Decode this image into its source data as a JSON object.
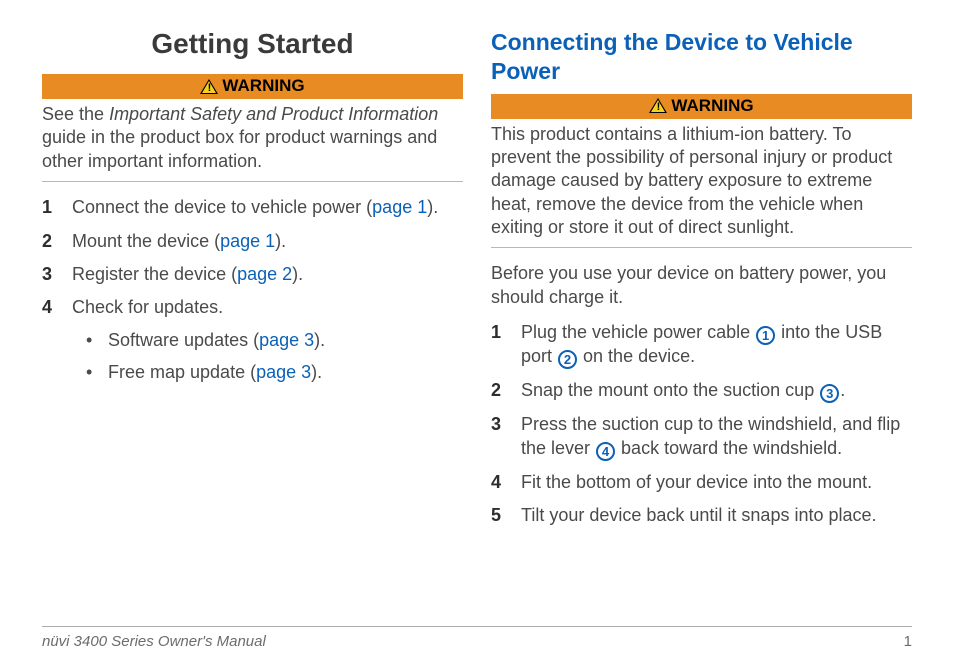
{
  "left": {
    "title": "Getting Started",
    "warning_label": "WARNING",
    "warning_before": "See the ",
    "warning_italic": "Important Safety and Product Information",
    "warning_after": " guide in the product box for product warnings and other important information.",
    "step1_a": "Connect the device to vehicle power (",
    "step1_link": "page 1",
    "step1_b": ").",
    "step2_a": "Mount the device (",
    "step2_link": "page 1",
    "step2_b": ").",
    "step3_a": "Register the device (",
    "step3_link": "page 2",
    "step3_b": ").",
    "step4": "Check for updates.",
    "sub1_a": "Software updates (",
    "sub1_link": "page 3",
    "sub1_b": ").",
    "sub2_a": "Free map update (",
    "sub2_link": "page 3",
    "sub2_b": ")."
  },
  "right": {
    "title": "Connecting the Device to Vehicle Power",
    "warning_label": "WARNING",
    "warning_text": "This product contains a lithium-ion battery. To prevent the possibility of personal injury or product damage caused by battery exposure to extreme heat, remove the device from the vehicle when exiting or store it out of direct sunlight.",
    "intro": "Before you use your device on battery power, you should charge it.",
    "s1_a": "Plug the vehicle power cable ",
    "s1_b": " into the USB port ",
    "s1_c": " on the device.",
    "s2_a": "Snap the mount onto the suction cup ",
    "s2_b": ".",
    "s3_a": "Press the suction cup to the windshield, and flip the lever ",
    "s3_b": " back toward the windshield.",
    "s4": "Fit the bottom of your device into the mount.",
    "s5": "Tilt your device back until it snaps into place.",
    "c1": "1",
    "c2": "2",
    "c3": "3",
    "c4": "4"
  },
  "footer": {
    "text": "nüvi 3400 Series Owner's Manual",
    "page": "1"
  },
  "colors": {
    "link": "#0b61b7",
    "warning_bg": "#e98b23",
    "text": "#4a4a4a",
    "triangle_fill": "#f4d21f"
  }
}
